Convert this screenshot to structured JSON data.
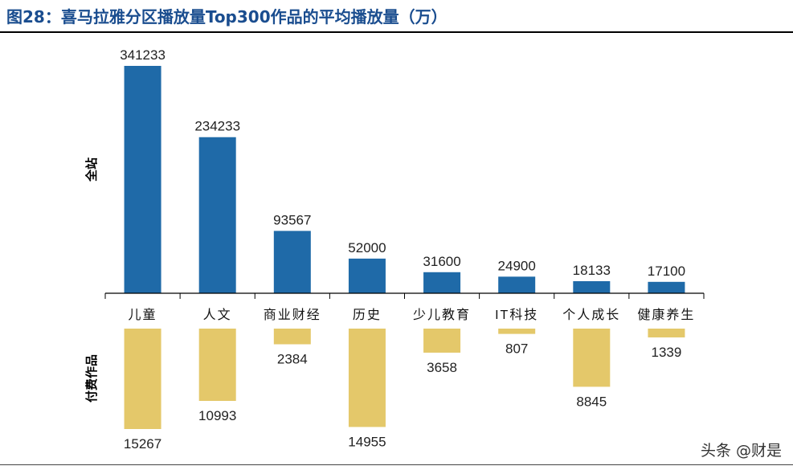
{
  "header": {
    "title": "图28：喜马拉雅分区播放量Top300作品的平均播放量（万）"
  },
  "watermark": "头条 @财是",
  "colors": {
    "top_bar": "#1f6aa8",
    "bottom_bar": "#e4c86a",
    "title": "#1a4d8f",
    "axis": "#000000"
  },
  "chart_data": [
    {
      "type": "bar",
      "name": "全站",
      "categories": [
        "儿童",
        "人文",
        "商业财经",
        "历史",
        "少儿教育",
        "IT科技",
        "个人成长",
        "健康养生"
      ],
      "values": [
        341233,
        234233,
        93567,
        52000,
        31600,
        24900,
        18133,
        17100
      ],
      "ylabel": "全站",
      "direction": "up"
    },
    {
      "type": "bar",
      "name": "付费作品",
      "categories": [
        "儿童",
        "人文",
        "商业财经",
        "历史",
        "少儿教育",
        "IT科技",
        "个人成长",
        "健康养生"
      ],
      "values": [
        15267,
        10993,
        2384,
        14955,
        3658,
        807,
        8845,
        1339
      ],
      "ylabel": "付费作品",
      "direction": "down"
    }
  ]
}
